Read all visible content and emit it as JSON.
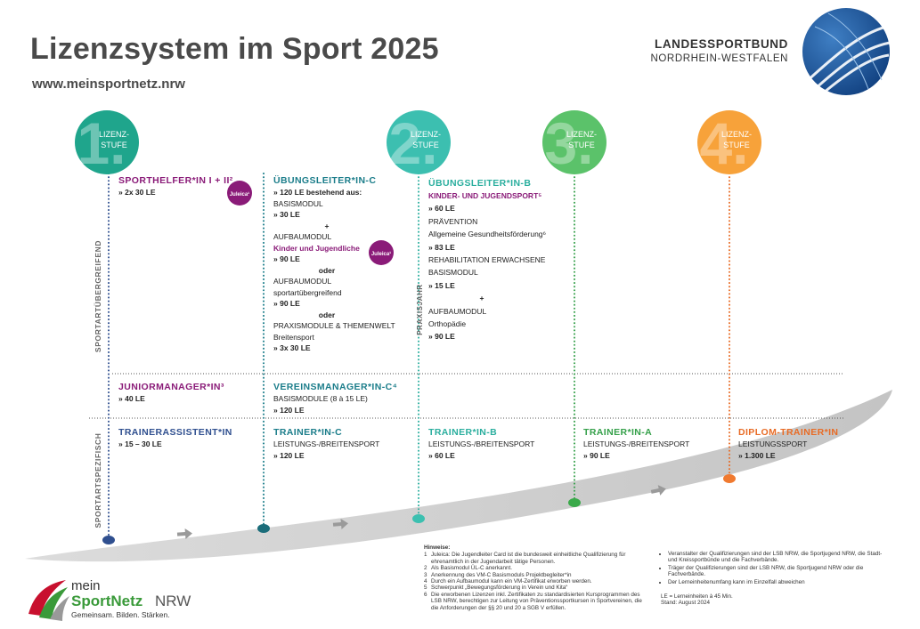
{
  "header": {
    "title": "Lizenzsystem im Sport 2025",
    "url": "www.meinsportnetz.nrw",
    "org_line1": "LANDESSPORTBUND",
    "org_line2": "NORDRHEIN-WESTFALEN"
  },
  "stages": [
    {
      "number": "1.",
      "label": [
        "LIZENZ-",
        "STUFE"
      ]
    },
    {
      "number": "2.",
      "label": [
        "LIZENZ-",
        "STUFE"
      ]
    },
    {
      "number": "3.",
      "label": [
        "LIZENZ-",
        "STUFE"
      ]
    },
    {
      "number": "4.",
      "label": [
        "LIZENZ-",
        "STUFE"
      ]
    }
  ],
  "side_labels": [
    "SPORTARTÜBERGREIFEND",
    "SPORTARTSPEZIFISCH",
    "PRAXISJAHR"
  ],
  "badge_label": "Juleica¹",
  "blocks": [
    {
      "title": "SPORTHELFER*IN I + II²",
      "lines": [
        "» 2x 30 LE"
      ]
    },
    {
      "title": "ÜBUNGSLEITER*IN-C",
      "lines": [
        "» 120 LE bestehend aus:",
        "BASISMODUL",
        "» 30 LE",
        "+",
        "AUFBAUMODUL",
        "Kinder und Jugendliche",
        "» 90 LE",
        "oder",
        "AUFBAUMODUL",
        "sportartübergreifend",
        "» 90 LE",
        "oder",
        "PRAXISMODULE & THEMENWELT",
        "Breitensport",
        "» 3x 30 LE"
      ]
    },
    {
      "title": "ÜBUNGSLEITER*IN-B",
      "lines": [
        "KINDER- UND JUGENDSPORT⁵",
        "» 60 LE",
        "PRÄVENTION",
        "Allgemeine Gesundheitsförderung⁶",
        "» 83 LE",
        "REHABILITATION ERWACHSENE",
        "BASISMODUL",
        "» 15 LE",
        "+",
        "AUFBAUMODUL",
        "Orthopädie",
        "» 90 LE"
      ]
    },
    {
      "title": "JUNIORMANAGER*IN³",
      "lines": [
        "» 40 LE"
      ]
    },
    {
      "title": "VEREINSMANAGER*IN-C⁴",
      "lines": [
        "BASISMODULE (8 à 15 LE)",
        "» 120 LE"
      ]
    },
    {
      "title": "TRAINERASSISTENT*IN",
      "lines": [
        "» 15 – 30 LE"
      ]
    },
    {
      "title": "TRAINER*IN-C",
      "lines": [
        "LEISTUNGS-/BREITENSPORT",
        "» 120 LE"
      ]
    },
    {
      "title": "TRAINER*IN-B",
      "lines": [
        "LEISTUNGS-/BREITENSPORT",
        "» 60 LE"
      ]
    },
    {
      "title": "TRAINER*IN-A",
      "lines": [
        "LEISTUNGS-/BREITENSPORT",
        "» 90 LE"
      ]
    },
    {
      "title": "DIPLOM-TRAINER*IN",
      "lines": [
        "LEISTUNGSSPORT",
        "» 1.300 LE"
      ]
    }
  ],
  "notes": {
    "title": "Hinweise:",
    "items": [
      {
        "marker": "1",
        "text": "Juleica: Die Jugendleiter Card ist die bundesweit einheitliche Qualifizierung für ehrenamtlich in der Jugendarbeit tätige Personen."
      },
      {
        "marker": "2",
        "text": "Als Basismodul ÜL-C anerkannt."
      },
      {
        "marker": "3",
        "text": "Anerkennung des VM-C Basismoduls Projektbegleiter*in"
      },
      {
        "marker": "4",
        "text": "Durch ein Aufbaumodul kann ein VM-Zertifikat erworben werden."
      },
      {
        "marker": "5",
        "text": "Schwerpunkt „Bewegungsförderung in Verein und Kita“"
      },
      {
        "marker": "6",
        "text": "Die erworbenen Lizenzen inkl. Zertifikaten zu standardisierten Kursprogrammen des LSB NRW, berechtigen zur Leitung von Präventionssportkursen in Sportvereinen, die die Anforderungen der §§ 20 und 20 a SGB V erfüllen."
      }
    ],
    "bullets": [
      "Veranstalter der Qualifizierungen sind der LSB NRW, die Sportjugend NRW, die Stadt- und Kreissportbünde und die Fachverbände.",
      "Träger der Qualifizierungen sind der LSB NRW, die Sportjugend NRW oder die Fachverbände.",
      "Der Lerneinheitenumfang kann im Einzelfall abweichen"
    ],
    "le_note": "LE = Lerneinheiten à 45 Min.",
    "stand": "Stand: August 2024"
  },
  "logo": {
    "word1": "mein",
    "word2": "SportNetz",
    "word3": "NRW",
    "tagline": "Gemeinsam. Bilden. Stärken."
  }
}
